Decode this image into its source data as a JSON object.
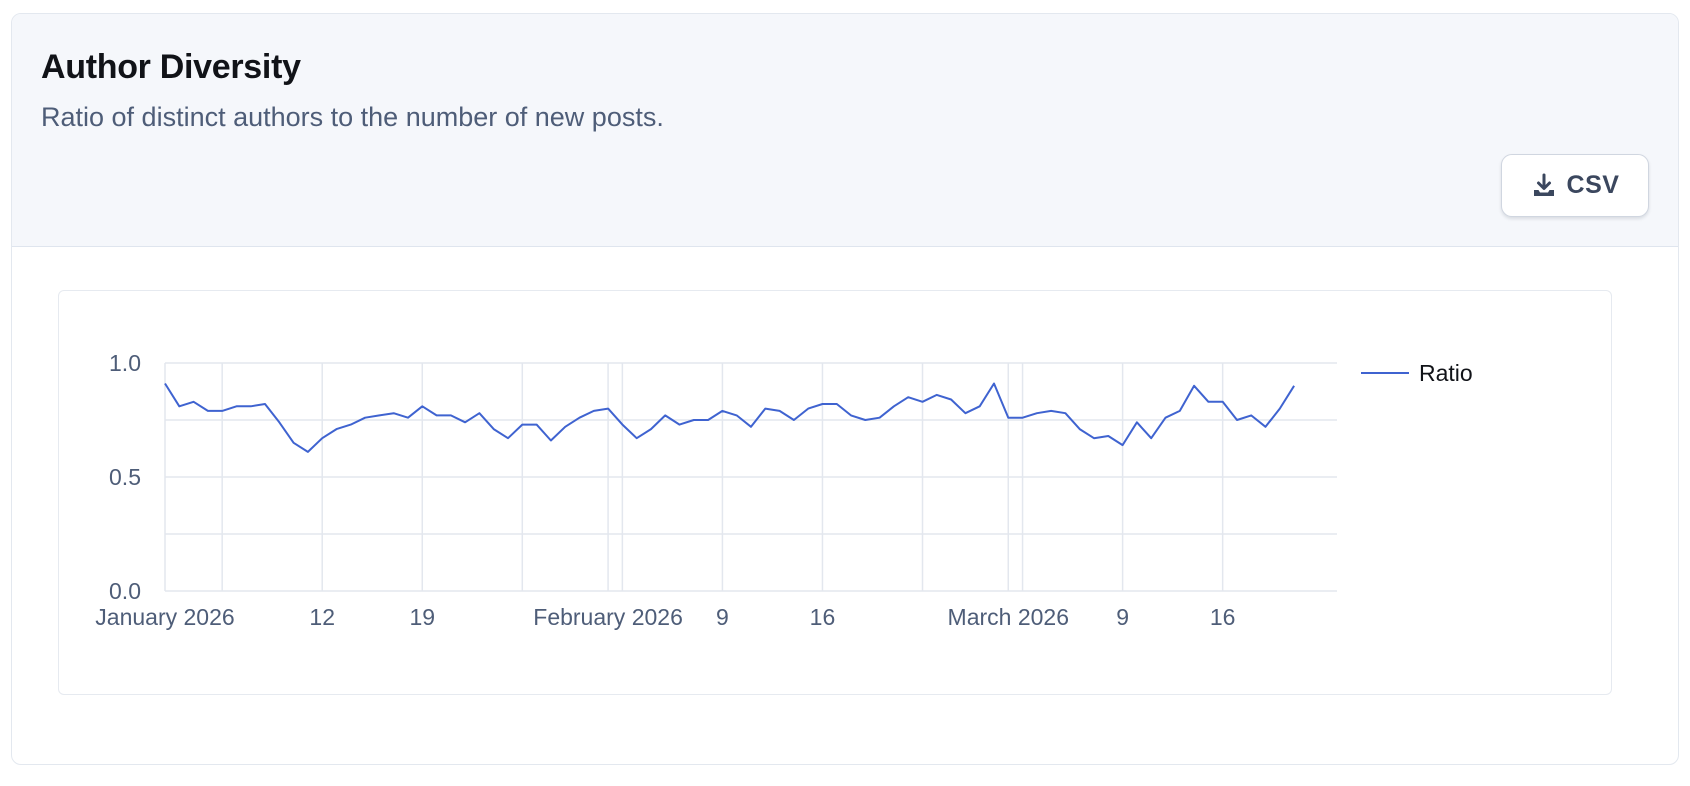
{
  "header": {
    "title": "Author Diversity",
    "subtitle": "Ratio of distinct authors to the number of new posts.",
    "csv_button_label": "CSV"
  },
  "icons": {
    "csv_button": "download-icon"
  },
  "colors": {
    "series_line": "#3f63d0",
    "header_bg": "#f5f7fb",
    "grid": "#e3e7ee",
    "tick_text": "#4e5d78"
  },
  "chart_data": {
    "type": "line",
    "title": "",
    "xlabel": "",
    "ylabel": "",
    "ylim": [
      0,
      1
    ],
    "yticks": [
      0.0,
      0.5,
      1.0
    ],
    "ytick_labels": [
      "0.0",
      "0.5",
      "1.0"
    ],
    "y_gridlines": [
      0,
      0.25,
      0.5,
      0.75,
      1.0
    ],
    "xlim": [
      "2026-01-01",
      "2026-03-24"
    ],
    "xticks": [
      {
        "date": "2026-01-01",
        "label": "January 2026"
      },
      {
        "date": "2026-01-12",
        "label": "12"
      },
      {
        "date": "2026-01-19",
        "label": "19"
      },
      {
        "date": "2026-02-01",
        "label": "February 2026"
      },
      {
        "date": "2026-02-09",
        "label": "9"
      },
      {
        "date": "2026-02-16",
        "label": "16"
      },
      {
        "date": "2026-03-01",
        "label": "March 2026"
      },
      {
        "date": "2026-03-09",
        "label": "9"
      },
      {
        "date": "2026-03-16",
        "label": "16"
      }
    ],
    "x_gridlines": [
      "2026-01-05",
      "2026-01-12",
      "2026-01-19",
      "2026-01-26",
      "2026-02-01",
      "2026-02-02",
      "2026-02-09",
      "2026-02-16",
      "2026-02-23",
      "2026-03-01",
      "2026-03-02",
      "2026-03-09",
      "2026-03-16"
    ],
    "grid": true,
    "legend_position": "top-right",
    "series": [
      {
        "name": "Ratio",
        "start_date": "2026-01-01",
        "interval_days": 1,
        "values": [
          0.91,
          0.81,
          0.83,
          0.79,
          0.79,
          0.81,
          0.81,
          0.82,
          0.74,
          0.65,
          0.61,
          0.67,
          0.71,
          0.73,
          0.76,
          0.77,
          0.78,
          0.76,
          0.81,
          0.77,
          0.77,
          0.74,
          0.78,
          0.71,
          0.67,
          0.73,
          0.73,
          0.66,
          0.72,
          0.76,
          0.79,
          0.8,
          0.73,
          0.67,
          0.71,
          0.77,
          0.73,
          0.75,
          0.75,
          0.79,
          0.77,
          0.72,
          0.8,
          0.79,
          0.75,
          0.8,
          0.82,
          0.82,
          0.77,
          0.75,
          0.76,
          0.81,
          0.85,
          0.83,
          0.86,
          0.84,
          0.78,
          0.81,
          0.91,
          0.76,
          0.76,
          0.78,
          0.79,
          0.78,
          0.71,
          0.67,
          0.68,
          0.64,
          0.74,
          0.67,
          0.76,
          0.79,
          0.9,
          0.83,
          0.83,
          0.75,
          0.77,
          0.72,
          0.8,
          0.9
        ]
      }
    ]
  }
}
